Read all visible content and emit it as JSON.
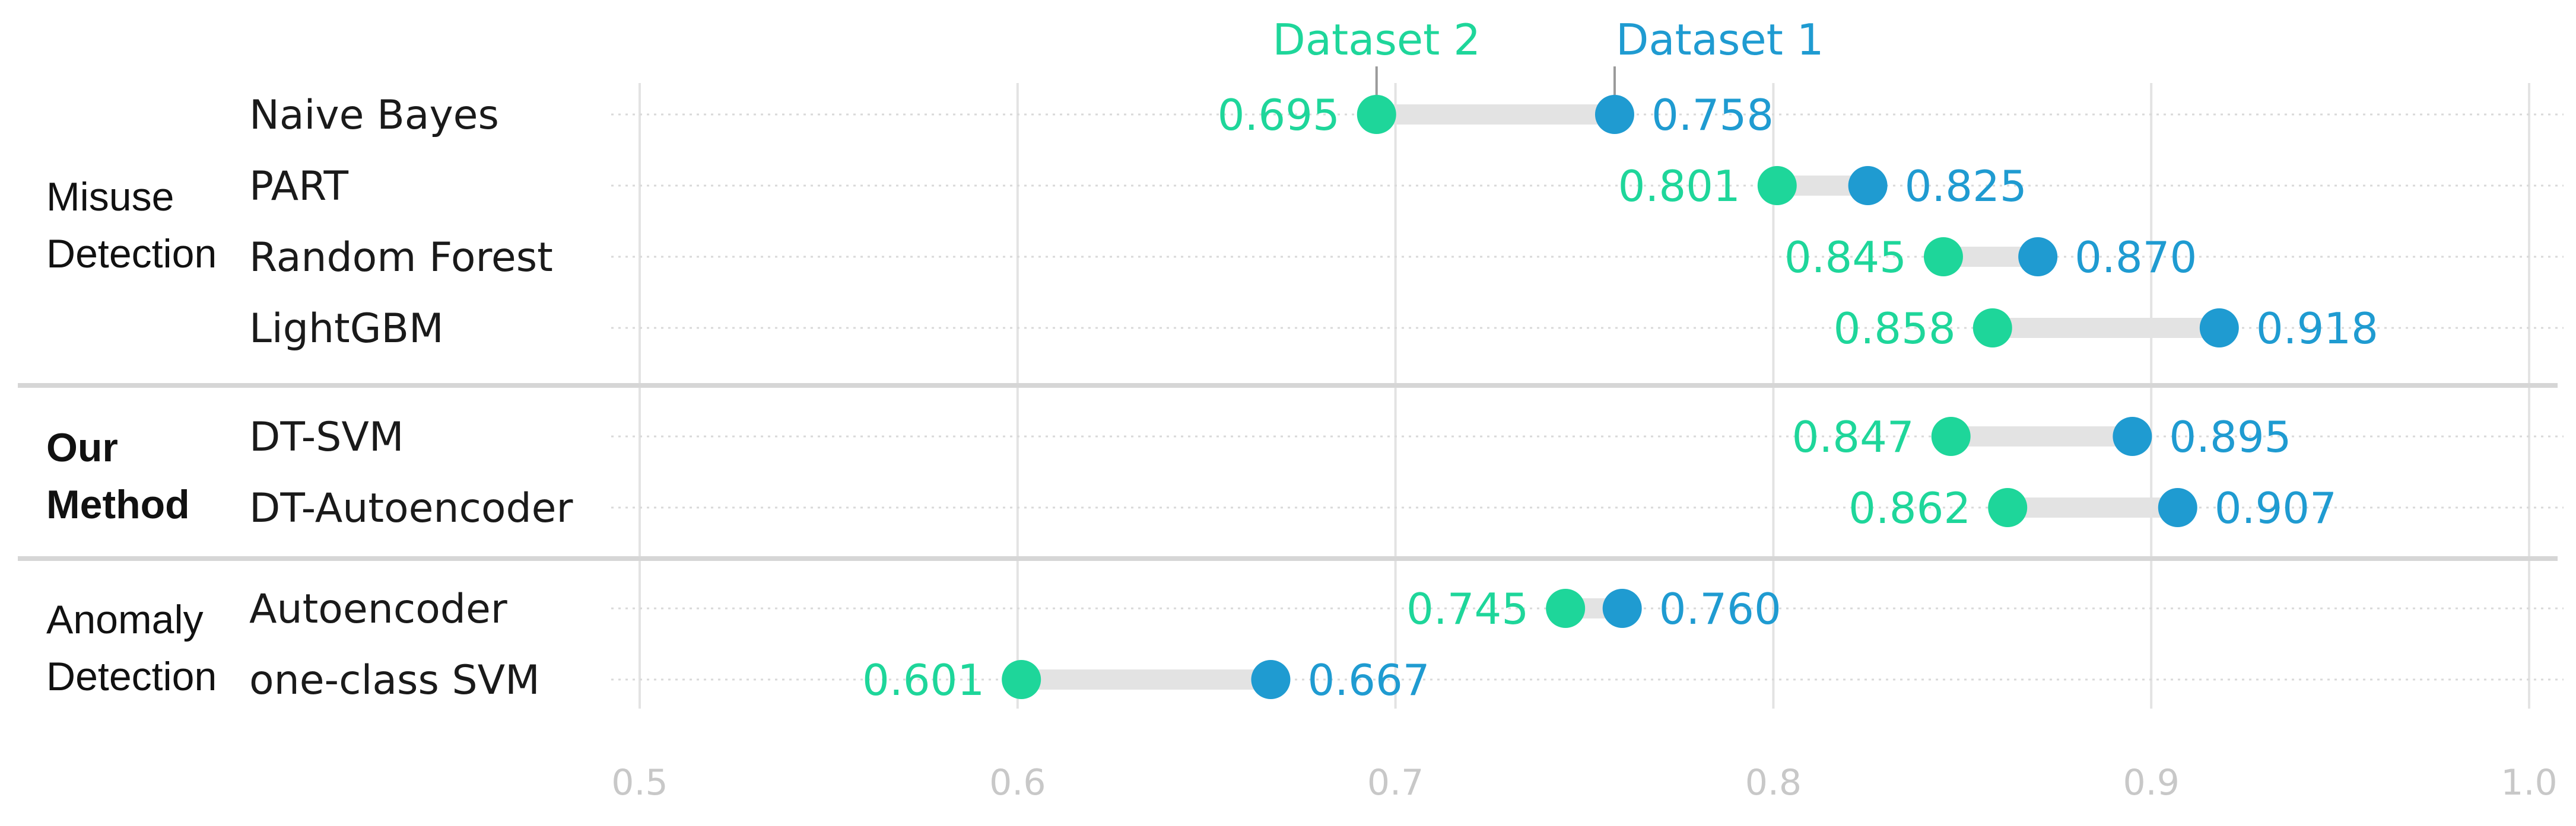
{
  "colors": {
    "dataset1": "#1f9bd1",
    "dataset2": "#1ed69a",
    "connector": "#e3e3e3",
    "grid": "#e3e3e3",
    "separator": "#d6d6d6",
    "tick_text": "#c8c8c8"
  },
  "chart_data": {
    "type": "dumbbell",
    "xlim": [
      0.5,
      1.0
    ],
    "x_ticks": [
      "0.5",
      "0.6",
      "0.7",
      "0.8",
      "0.9",
      "1.0"
    ],
    "grid": true,
    "legend_placement": "top, above first row at each series marker",
    "series": [
      {
        "name": "Dataset 1",
        "color": "#1f9bd1"
      },
      {
        "name": "Dataset 2",
        "color": "#1ed69a"
      }
    ],
    "groups": [
      {
        "label_lines": [
          "Misuse",
          "Detection"
        ],
        "bold": false,
        "rows": [
          {
            "name": "Naive Bayes",
            "dataset1": 0.758,
            "dataset2": 0.695,
            "dataset1_label": "0.758",
            "dataset2_label": "0.695"
          },
          {
            "name": "PART",
            "dataset1": 0.825,
            "dataset2": 0.801,
            "dataset1_label": "0.825",
            "dataset2_label": "0.801"
          },
          {
            "name": "Random Forest",
            "dataset1": 0.87,
            "dataset2": 0.845,
            "dataset1_label": "0.870",
            "dataset2_label": "0.845"
          },
          {
            "name": "LightGBM",
            "dataset1": 0.918,
            "dataset2": 0.858,
            "dataset1_label": "0.918",
            "dataset2_label": "0.858"
          }
        ]
      },
      {
        "label_lines": [
          "Our",
          "Method"
        ],
        "bold": true,
        "rows": [
          {
            "name": "DT-SVM",
            "dataset1": 0.895,
            "dataset2": 0.847,
            "dataset1_label": "0.895",
            "dataset2_label": "0.847"
          },
          {
            "name": "DT-Autoencoder",
            "dataset1": 0.907,
            "dataset2": 0.862,
            "dataset1_label": "0.907",
            "dataset2_label": "0.862"
          }
        ]
      },
      {
        "label_lines": [
          "Anomaly",
          "Detection"
        ],
        "bold": false,
        "rows": [
          {
            "name": "Autoencoder",
            "dataset1": 0.76,
            "dataset2": 0.745,
            "dataset1_label": "0.760",
            "dataset2_label": "0.745"
          },
          {
            "name": "one-class SVM",
            "dataset1": 0.667,
            "dataset2": 0.601,
            "dataset1_label": "0.667",
            "dataset2_label": "0.601"
          }
        ]
      }
    ]
  }
}
